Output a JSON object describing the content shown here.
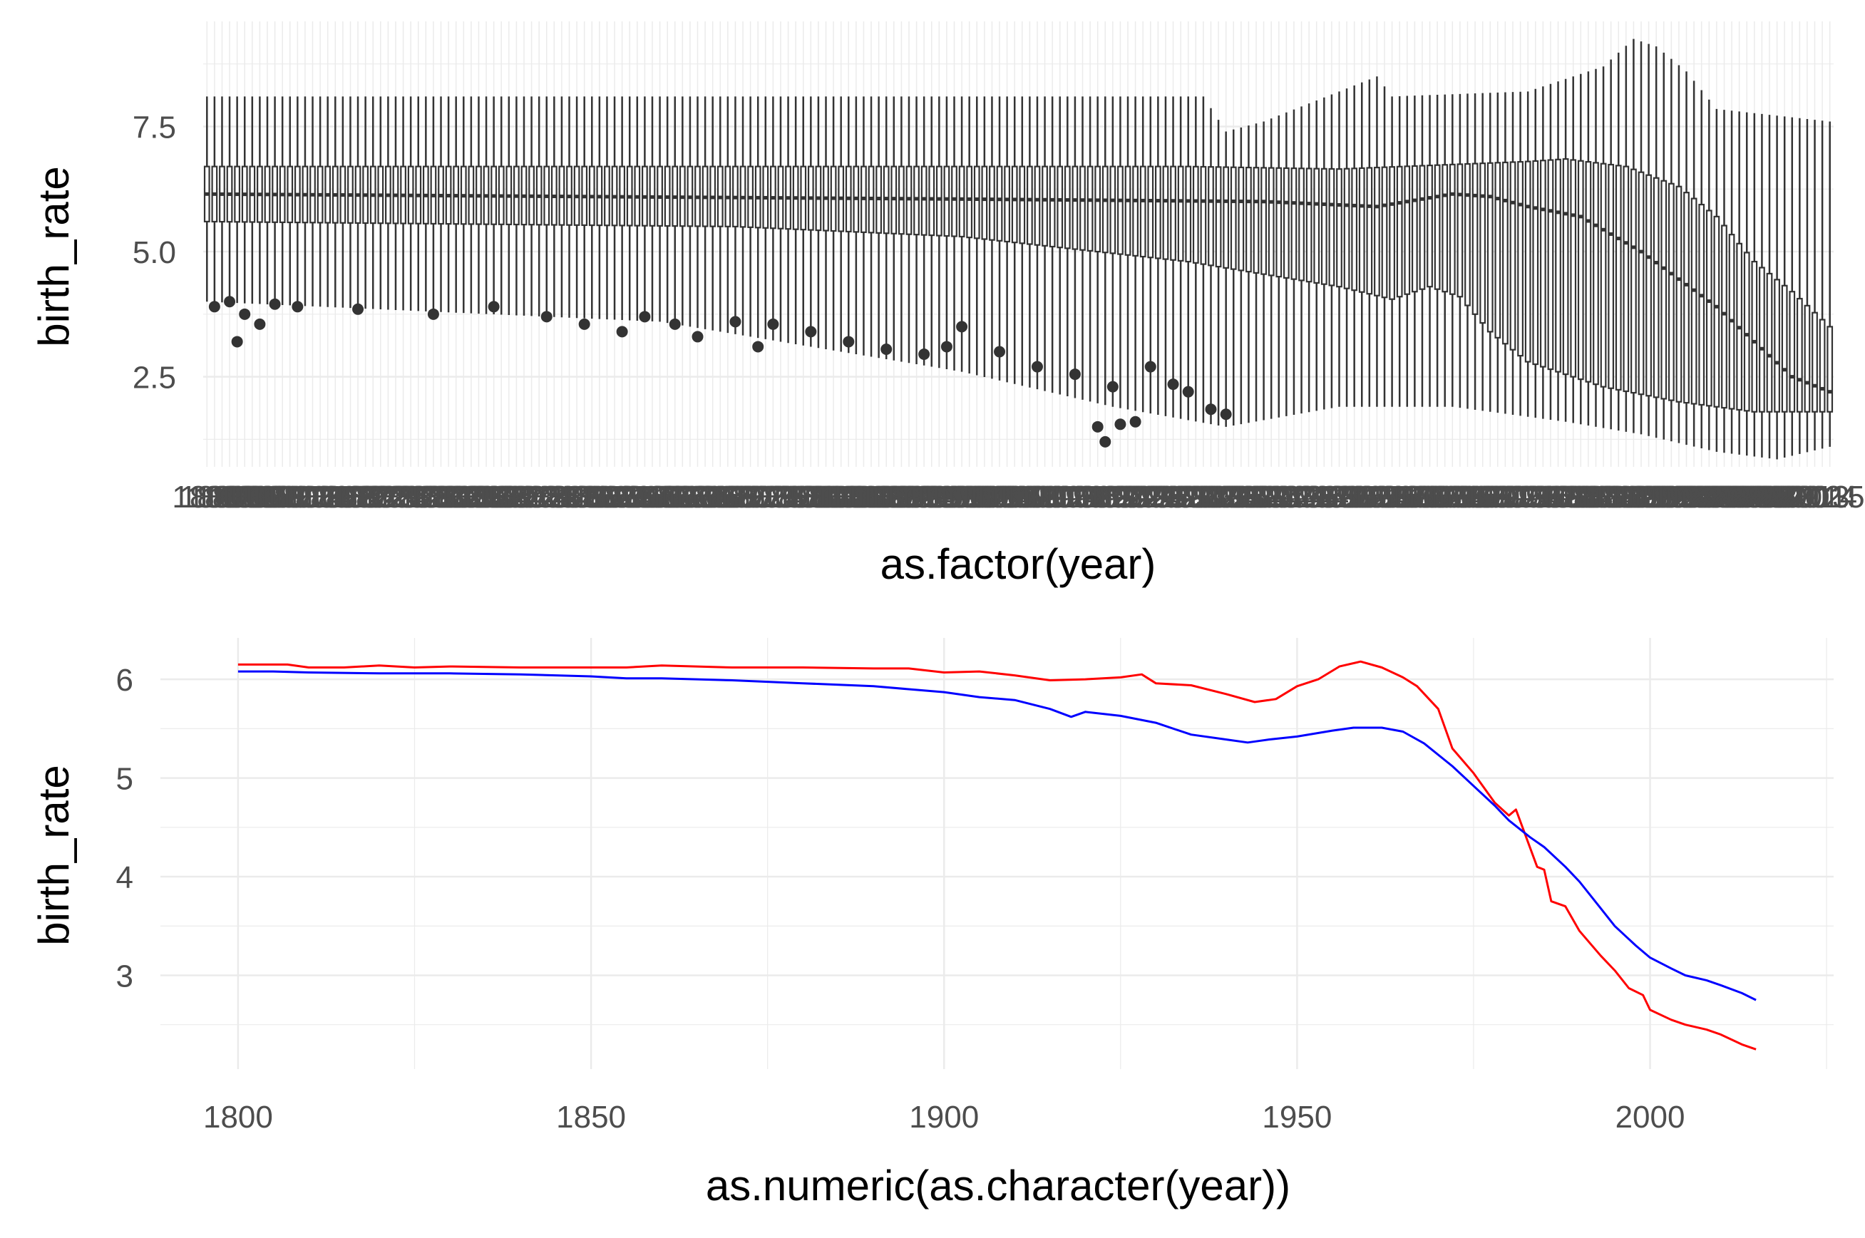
{
  "chart_data": [
    {
      "type": "boxplot",
      "xlabel": "as.factor(year)",
      "ylabel": "birth_rate",
      "x_categories": {
        "first": 1800,
        "last": 2015,
        "count": 216
      },
      "yticks": [
        "2.5",
        "5.0",
        "7.5"
      ],
      "ylim": [
        0.7,
        9.6
      ],
      "grid": true,
      "legend": "none",
      "whisker_high": [
        [
          1800,
          8.1
        ],
        [
          1932,
          8.1
        ],
        [
          1935,
          7.4
        ],
        [
          1940,
          7.6
        ],
        [
          1955,
          8.5
        ],
        [
          1957,
          8.1
        ],
        [
          1975,
          8.2
        ],
        [
          1985,
          8.7
        ],
        [
          1989,
          9.25
        ],
        [
          1992,
          9.1
        ],
        [
          1996,
          8.6
        ],
        [
          2000,
          7.85
        ],
        [
          2015,
          7.6
        ]
      ],
      "q3": [
        [
          1800,
          6.7
        ],
        [
          1930,
          6.7
        ],
        [
          1950,
          6.65
        ],
        [
          1975,
          6.8
        ],
        [
          1980,
          6.85
        ],
        [
          1988,
          6.7
        ],
        [
          1995,
          6.3
        ],
        [
          2000,
          5.7
        ],
        [
          2005,
          4.8
        ],
        [
          2010,
          4.2
        ],
        [
          2015,
          3.5
        ]
      ],
      "median": [
        [
          1800,
          6.15
        ],
        [
          1900,
          6.05
        ],
        [
          1940,
          6.0
        ],
        [
          1955,
          5.9
        ],
        [
          1965,
          6.15
        ],
        [
          1970,
          6.1
        ],
        [
          1975,
          5.9
        ],
        [
          1982,
          5.7
        ],
        [
          1990,
          5.0
        ],
        [
          2000,
          3.9
        ],
        [
          2005,
          3.2
        ],
        [
          2010,
          2.5
        ],
        [
          2015,
          2.2
        ]
      ],
      "q1": [
        [
          1800,
          5.6
        ],
        [
          1870,
          5.5
        ],
        [
          1900,
          5.3
        ],
        [
          1930,
          4.8
        ],
        [
          1950,
          4.3
        ],
        [
          1957,
          4.05
        ],
        [
          1962,
          4.3
        ],
        [
          1966,
          4.1
        ],
        [
          1970,
          3.4
        ],
        [
          1975,
          2.8
        ],
        [
          1985,
          2.3
        ],
        [
          1995,
          2.0
        ],
        [
          2005,
          1.8
        ],
        [
          2015,
          1.8
        ]
      ],
      "whisker_low": [
        [
          1800,
          4.0
        ],
        [
          1860,
          3.6
        ],
        [
          1900,
          2.6
        ],
        [
          1920,
          1.9
        ],
        [
          1935,
          1.5
        ],
        [
          1950,
          1.9
        ],
        [
          1965,
          1.9
        ],
        [
          1980,
          1.6
        ],
        [
          1990,
          1.35
        ],
        [
          2000,
          1.0
        ],
        [
          2008,
          0.85
        ],
        [
          2015,
          1.1
        ]
      ],
      "outliers": [
        [
          1801,
          3.9
        ],
        [
          1803,
          4.0
        ],
        [
          1805,
          3.75
        ],
        [
          1804,
          3.2
        ],
        [
          1807,
          3.55
        ],
        [
          1809,
          3.95
        ],
        [
          1812,
          3.9
        ],
        [
          1820,
          3.85
        ],
        [
          1830,
          3.75
        ],
        [
          1838,
          3.9
        ],
        [
          1845,
          3.7
        ],
        [
          1850,
          3.55
        ],
        [
          1855,
          3.4
        ],
        [
          1858,
          3.7
        ],
        [
          1862,
          3.55
        ],
        [
          1865,
          3.3
        ],
        [
          1870,
          3.6
        ],
        [
          1873,
          3.1
        ],
        [
          1875,
          3.55
        ],
        [
          1880,
          3.4
        ],
        [
          1885,
          3.2
        ],
        [
          1890,
          3.05
        ],
        [
          1895,
          2.95
        ],
        [
          1898,
          3.1
        ],
        [
          1900,
          3.5
        ],
        [
          1905,
          3.0
        ],
        [
          1910,
          2.7
        ],
        [
          1915,
          2.55
        ],
        [
          1918,
          1.5
        ],
        [
          1919,
          1.2
        ],
        [
          1920,
          2.3
        ],
        [
          1921,
          1.55
        ],
        [
          1923,
          1.6
        ],
        [
          1925,
          2.7
        ],
        [
          1928,
          2.35
        ],
        [
          1930,
          2.2
        ],
        [
          1933,
          1.85
        ],
        [
          1935,
          1.75
        ]
      ]
    },
    {
      "type": "line",
      "xlabel": "as.numeric(as.character(year))",
      "ylabel": "birth_rate",
      "xlim": [
        1789,
        2026
      ],
      "ylim": [
        2.05,
        6.42
      ],
      "xticks": [
        "1800",
        "1850",
        "1900",
        "1950",
        "2000"
      ],
      "yticks": [
        "3",
        "4",
        "5",
        "6"
      ],
      "grid": true,
      "legend": "none",
      "series": [
        {
          "color": "#ff0000",
          "points": [
            [
              1800,
              6.15
            ],
            [
              1807,
              6.15
            ],
            [
              1810,
              6.12
            ],
            [
              1815,
              6.12
            ],
            [
              1820,
              6.14
            ],
            [
              1825,
              6.12
            ],
            [
              1830,
              6.13
            ],
            [
              1840,
              6.12
            ],
            [
              1850,
              6.12
            ],
            [
              1855,
              6.12
            ],
            [
              1860,
              6.14
            ],
            [
              1870,
              6.12
            ],
            [
              1880,
              6.12
            ],
            [
              1890,
              6.11
            ],
            [
              1895,
              6.11
            ],
            [
              1900,
              6.07
            ],
            [
              1905,
              6.08
            ],
            [
              1910,
              6.04
            ],
            [
              1915,
              5.99
            ],
            [
              1920,
              6.0
            ],
            [
              1925,
              6.02
            ],
            [
              1928,
              6.05
            ],
            [
              1930,
              5.96
            ],
            [
              1935,
              5.94
            ],
            [
              1940,
              5.85
            ],
            [
              1944,
              5.77
            ],
            [
              1947,
              5.8
            ],
            [
              1950,
              5.93
            ],
            [
              1953,
              6.0
            ],
            [
              1956,
              6.13
            ],
            [
              1959,
              6.18
            ],
            [
              1962,
              6.12
            ],
            [
              1965,
              6.02
            ],
            [
              1967,
              5.93
            ],
            [
              1970,
              5.7
            ],
            [
              1972,
              5.3
            ],
            [
              1975,
              5.05
            ],
            [
              1978,
              4.75
            ],
            [
              1980,
              4.62
            ],
            [
              1981,
              4.68
            ],
            [
              1984,
              4.1
            ],
            [
              1985,
              4.07
            ],
            [
              1986,
              3.75
            ],
            [
              1988,
              3.7
            ],
            [
              1990,
              3.45
            ],
            [
              1993,
              3.2
            ],
            [
              1995,
              3.05
            ],
            [
              1997,
              2.87
            ],
            [
              1999,
              2.8
            ],
            [
              2000,
              2.65
            ],
            [
              2003,
              2.55
            ],
            [
              2005,
              2.5
            ],
            [
              2008,
              2.45
            ],
            [
              2010,
              2.4
            ],
            [
              2013,
              2.3
            ],
            [
              2015,
              2.25
            ]
          ]
        },
        {
          "color": "#0000ff",
          "points": [
            [
              1800,
              6.08
            ],
            [
              1805,
              6.08
            ],
            [
              1810,
              6.07
            ],
            [
              1820,
              6.06
            ],
            [
              1830,
              6.06
            ],
            [
              1840,
              6.05
            ],
            [
              1850,
              6.03
            ],
            [
              1855,
              6.01
            ],
            [
              1860,
              6.01
            ],
            [
              1870,
              5.99
            ],
            [
              1880,
              5.96
            ],
            [
              1890,
              5.93
            ],
            [
              1895,
              5.9
            ],
            [
              1900,
              5.87
            ],
            [
              1905,
              5.82
            ],
            [
              1910,
              5.79
            ],
            [
              1915,
              5.7
            ],
            [
              1918,
              5.62
            ],
            [
              1920,
              5.67
            ],
            [
              1925,
              5.63
            ],
            [
              1930,
              5.56
            ],
            [
              1935,
              5.44
            ],
            [
              1940,
              5.39
            ],
            [
              1943,
              5.36
            ],
            [
              1946,
              5.39
            ],
            [
              1950,
              5.42
            ],
            [
              1955,
              5.48
            ],
            [
              1958,
              5.51
            ],
            [
              1962,
              5.51
            ],
            [
              1965,
              5.47
            ],
            [
              1968,
              5.35
            ],
            [
              1972,
              5.12
            ],
            [
              1975,
              4.92
            ],
            [
              1978,
              4.72
            ],
            [
              1980,
              4.57
            ],
            [
              1983,
              4.4
            ],
            [
              1985,
              4.3
            ],
            [
              1988,
              4.1
            ],
            [
              1990,
              3.95
            ],
            [
              1993,
              3.68
            ],
            [
              1995,
              3.5
            ],
            [
              1998,
              3.3
            ],
            [
              2000,
              3.18
            ],
            [
              2003,
              3.07
            ],
            [
              2005,
              3.0
            ],
            [
              2008,
              2.95
            ],
            [
              2010,
              2.9
            ],
            [
              2013,
              2.82
            ],
            [
              2015,
              2.75
            ]
          ]
        }
      ]
    }
  ]
}
